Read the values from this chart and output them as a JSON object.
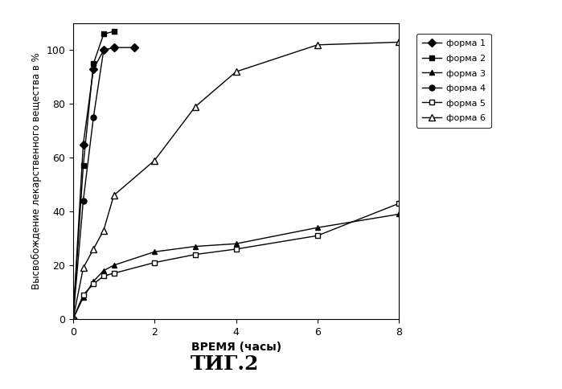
{
  "title": "ΤИГ.2",
  "xlabel": "ВРЕМЯ (часы)",
  "ylabel": "Высвобождение лекарственного вещества в %",
  "xlim": [
    0,
    8
  ],
  "ylim": [
    0,
    110
  ],
  "yticks": [
    0,
    20,
    40,
    60,
    80,
    100
  ],
  "xticks": [
    0,
    2,
    4,
    6,
    8
  ],
  "series": [
    {
      "label": "форма 1",
      "marker": "D",
      "marker_fill": "black",
      "markersize": 5,
      "x": [
        0,
        0.25,
        0.5,
        0.75,
        1.0,
        1.5
      ],
      "y": [
        0,
        65,
        93,
        100,
        101,
        101
      ]
    },
    {
      "label": "форма 2",
      "marker": "s",
      "marker_fill": "black",
      "markersize": 5,
      "x": [
        0,
        0.25,
        0.5,
        0.75,
        1.0
      ],
      "y": [
        0,
        57,
        95,
        106,
        107
      ]
    },
    {
      "label": "форма 3",
      "marker": "^",
      "marker_fill": "black",
      "markersize": 5,
      "x": [
        0,
        0.25,
        0.5,
        0.75,
        1.0,
        2.0,
        3.0,
        4.0,
        6.0,
        8.0
      ],
      "y": [
        0,
        8,
        14,
        18,
        20,
        25,
        27,
        28,
        34,
        39
      ]
    },
    {
      "label": "форма 4",
      "marker": "o",
      "marker_fill": "black",
      "markersize": 5,
      "x": [
        0,
        0.25,
        0.5,
        0.75,
        1.0
      ],
      "y": [
        0,
        44,
        75,
        100,
        101
      ]
    },
    {
      "label": "форма 5",
      "marker": "s",
      "marker_fill": "white",
      "markersize": 5,
      "x": [
        0,
        0.25,
        0.5,
        0.75,
        1.0,
        2.0,
        3.0,
        4.0,
        6.0,
        8.0
      ],
      "y": [
        0,
        9,
        13,
        16,
        17,
        21,
        24,
        26,
        31,
        43
      ]
    },
    {
      "label": "форма 6",
      "marker": "^",
      "marker_fill": "white",
      "markersize": 6,
      "x": [
        0,
        0.25,
        0.5,
        0.75,
        1.0,
        2.0,
        3.0,
        4.0,
        6.0,
        8.0
      ],
      "y": [
        0,
        19,
        26,
        33,
        46,
        59,
        79,
        92,
        102,
        103
      ]
    }
  ],
  "background_color": "#ffffff",
  "legend_fontsize": 8,
  "axis_fontsize": 9,
  "title_fontsize": 18,
  "xlabel_fontsize": 10,
  "ylabel_fontsize": 8.5
}
